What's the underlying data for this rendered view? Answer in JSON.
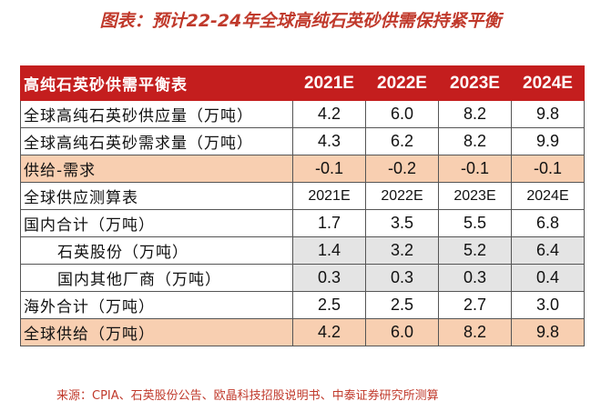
{
  "title": "图表：预计22-24年全球高纯石英砂供需保持紧平衡",
  "table": {
    "header": {
      "label": "高纯石英砂供需平衡表",
      "years": [
        "2021E",
        "2022E",
        "2023E",
        "2024E"
      ]
    },
    "rows": [
      {
        "label": "全球高纯石英砂供应量（万吨）",
        "values": [
          "4.2",
          "6.0",
          "8.2",
          "9.8"
        ]
      },
      {
        "label": "全球高纯石英砂需求量（万吨）",
        "values": [
          "4.3",
          "6.2",
          "8.2",
          "9.9"
        ]
      },
      {
        "label": "供给-需求",
        "values": [
          "-0.1",
          "-0.2",
          "-0.1",
          "-0.1"
        ]
      },
      {
        "label": "全球供应测算表",
        "values": [
          "2021E",
          "2022E",
          "2023E",
          "2024E"
        ]
      },
      {
        "label": "国内合计（万吨）",
        "values": [
          "1.7",
          "3.5",
          "5.5",
          "6.8"
        ]
      },
      {
        "label": "石英股份（万吨）",
        "values": [
          "1.4",
          "3.2",
          "5.2",
          "6.4"
        ]
      },
      {
        "label": "国内其他厂商（万吨）",
        "values": [
          "0.3",
          "0.3",
          "0.3",
          "0.4"
        ]
      },
      {
        "label": "海外合计（万吨）",
        "values": [
          "2.5",
          "2.5",
          "2.7",
          "3.0"
        ]
      },
      {
        "label": "全球供给（万吨）",
        "values": [
          "4.2",
          "6.0",
          "8.2",
          "9.8"
        ]
      }
    ]
  },
  "source": "来源：CPIA、石英股份公告、欧晶科技招股说明书、中泰证券研究所测算",
  "colors": {
    "header_bg": "#c41e1e",
    "title": "#c0392b",
    "highlight_row": "#f8cfb1",
    "grey_cell": "#e4e4e4"
  }
}
